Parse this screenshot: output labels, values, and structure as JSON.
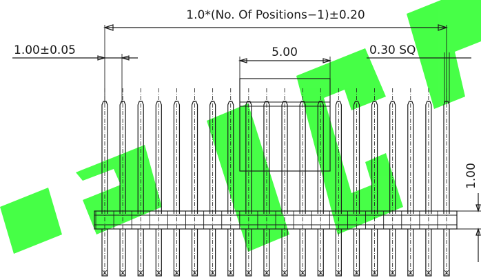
{
  "dimensions": {
    "overall_length": "1.0*(No. Of Positions−1)±0.20",
    "pitch": "1.00±0.05",
    "pin_square": "0.30 SQ",
    "box_width": "5.00",
    "insulator_height": "1.00"
  },
  "pins": {
    "count": 20
  },
  "colors": {
    "line": "#1a1a1a",
    "watermark": "#33ff33"
  }
}
